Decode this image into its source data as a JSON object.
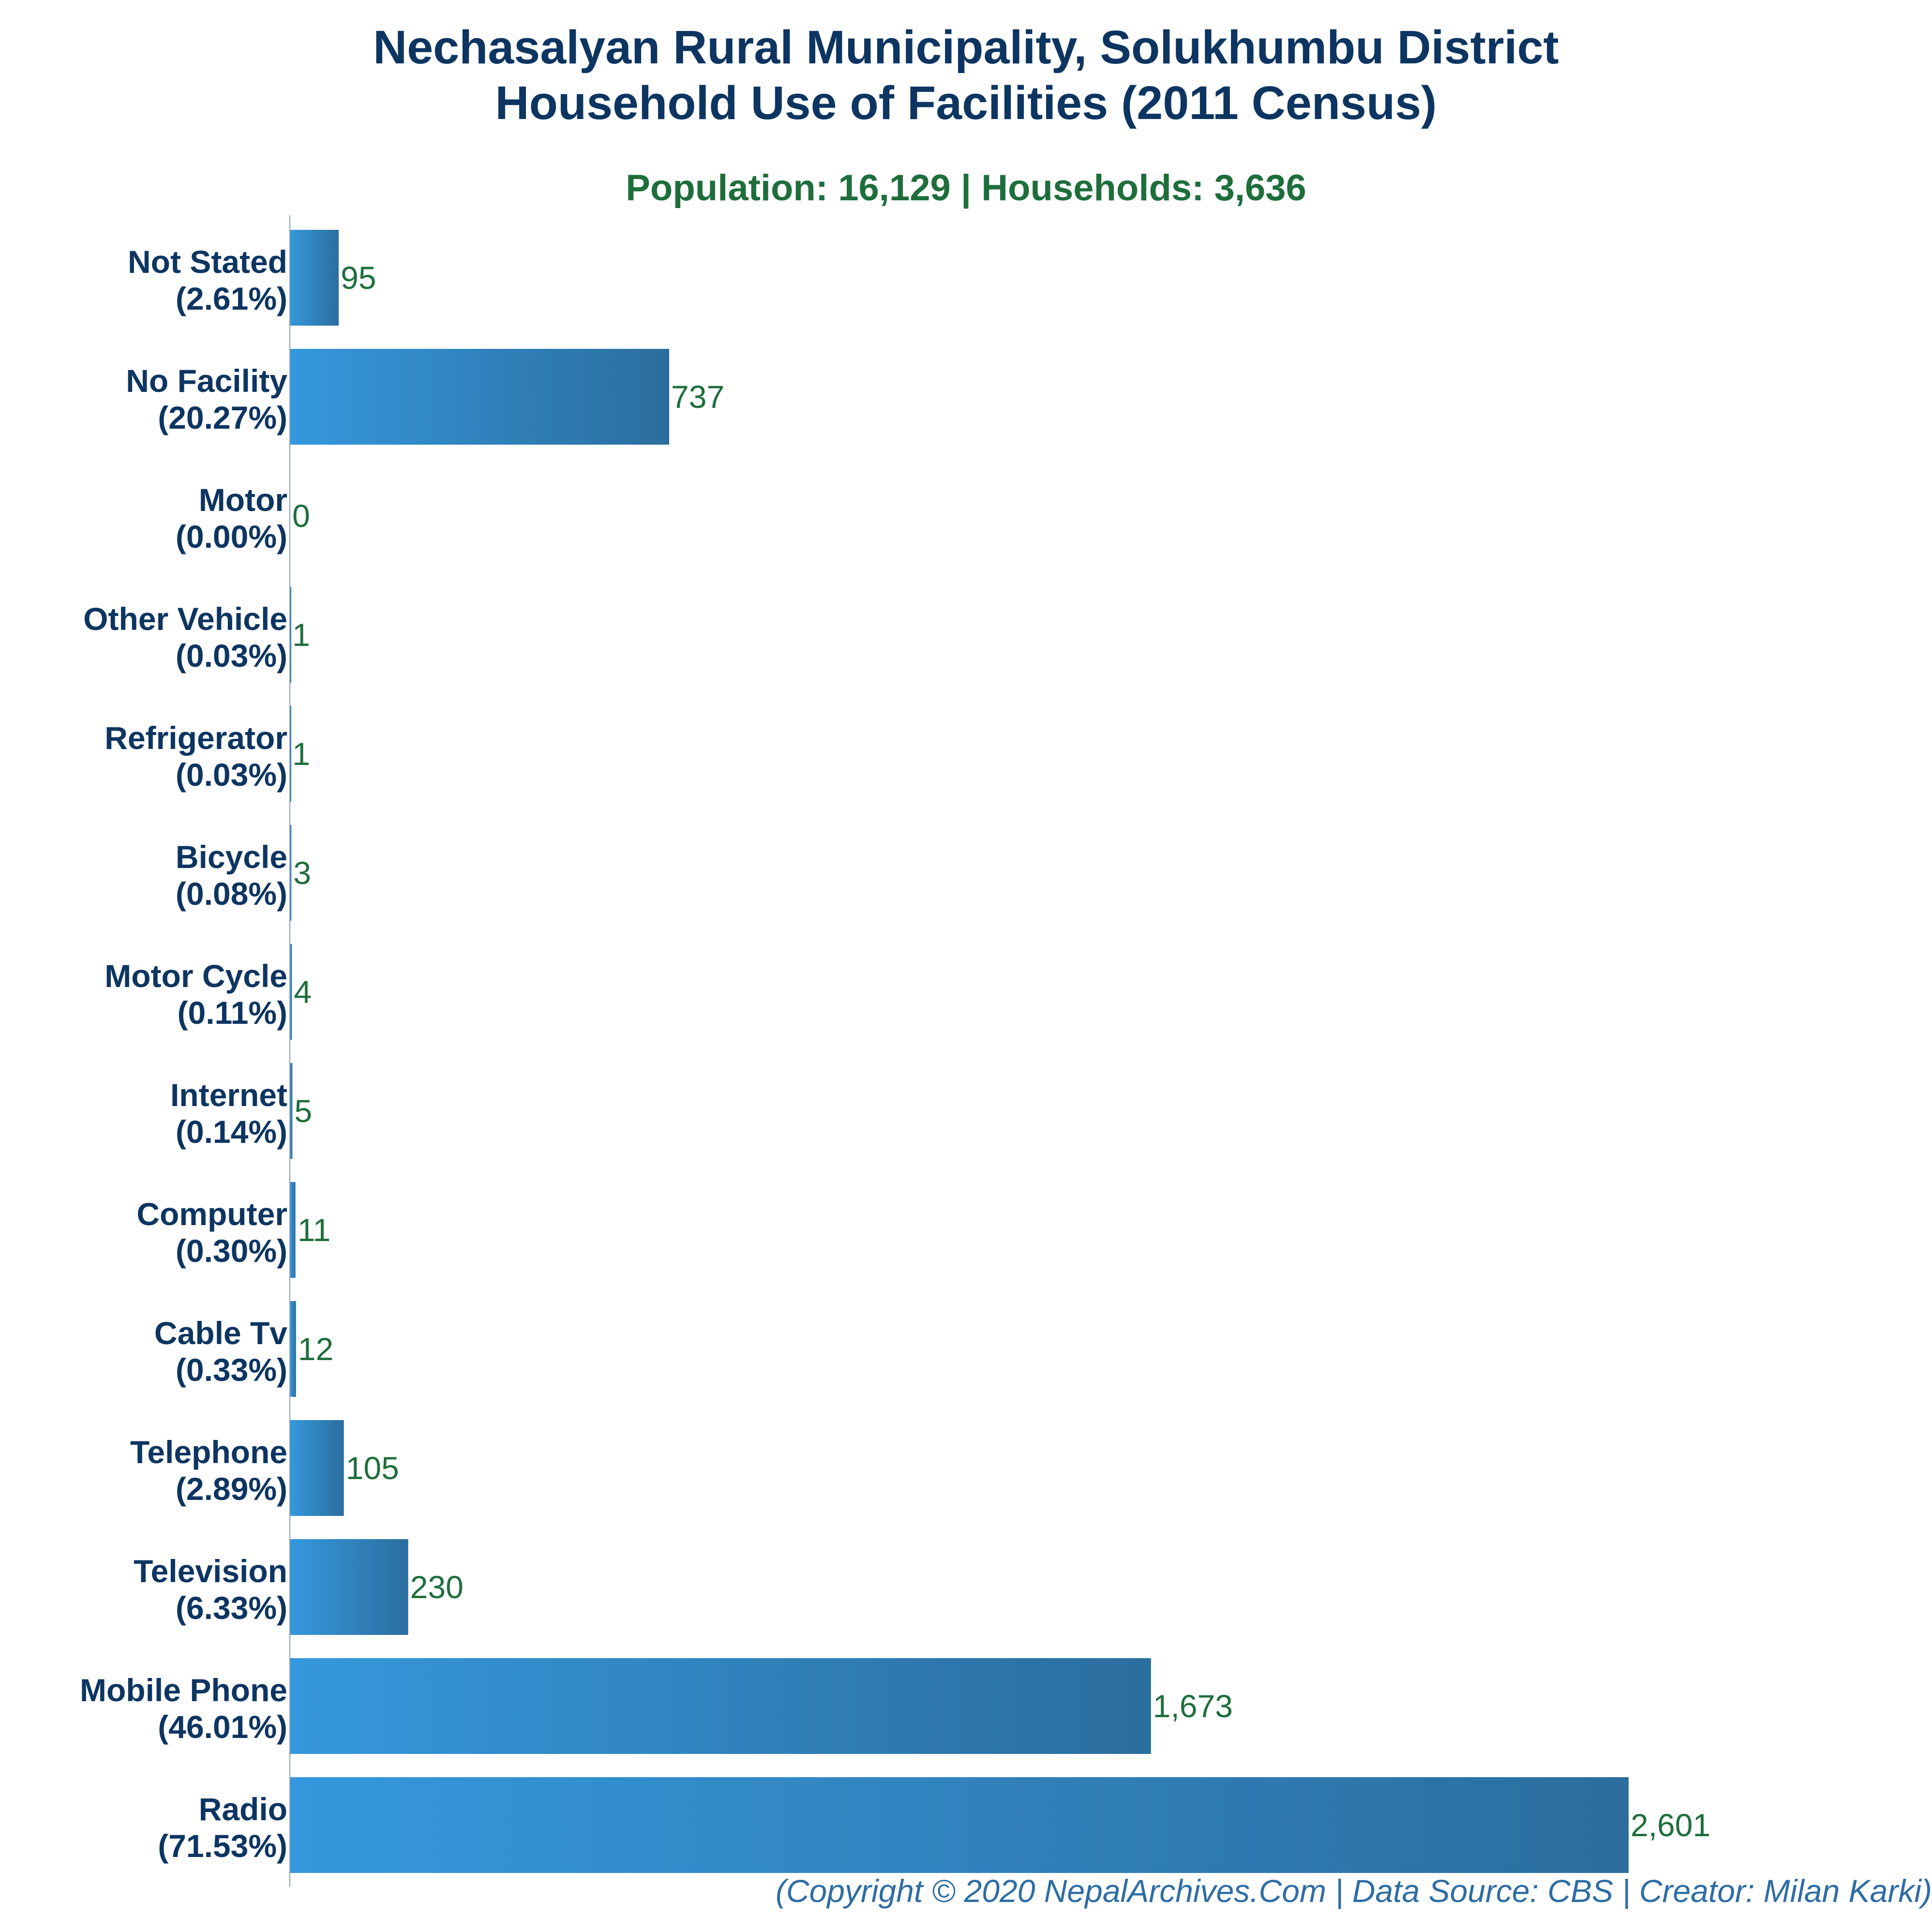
{
  "chart_data": {
    "type": "bar",
    "orientation": "horizontal",
    "title": [
      "Nechasalyan Rural Municipality, Solukhumbu District",
      "Household Use of Facilities (2011 Census)"
    ],
    "subtitle": "Population: 16,129 | Households: 3,636",
    "categories": [
      "Not Stated",
      "No Facility",
      "Motor",
      "Other Vehicle",
      "Refrigerator",
      "Bicycle",
      "Motor Cycle",
      "Internet",
      "Computer",
      "Cable Tv",
      "Telephone",
      "Television",
      "Mobile Phone",
      "Radio"
    ],
    "percent_labels": [
      "(2.61%)",
      "(20.27%)",
      "(0.00%)",
      "(0.03%)",
      "(0.03%)",
      "(0.08%)",
      "(0.11%)",
      "(0.14%)",
      "(0.30%)",
      "(0.33%)",
      "(2.89%)",
      "(6.33%)",
      "(46.01%)",
      "(71.53%)"
    ],
    "values": [
      95,
      737,
      0,
      1,
      1,
      3,
      4,
      5,
      11,
      12,
      105,
      230,
      1673,
      2601
    ],
    "value_labels": [
      "95",
      "737",
      "0",
      "1",
      "1",
      "3",
      "4",
      "5",
      "11",
      "12",
      "105",
      "230",
      "1,673",
      "2,601"
    ],
    "xlim": [
      0,
      2601
    ],
    "grid": false,
    "legend": "none",
    "colors": {
      "bar_start": "#3598dc",
      "bar_end": "#2b6e9e",
      "category_text": "#0d3561",
      "value_text": "#1e6e3c",
      "title": "#0d3561",
      "subtitle": "#1e6e3c"
    }
  },
  "footer": "(Copyright © 2020 NepalArchives.Com | Data Source: CBS | Creator: Milan Karki)"
}
